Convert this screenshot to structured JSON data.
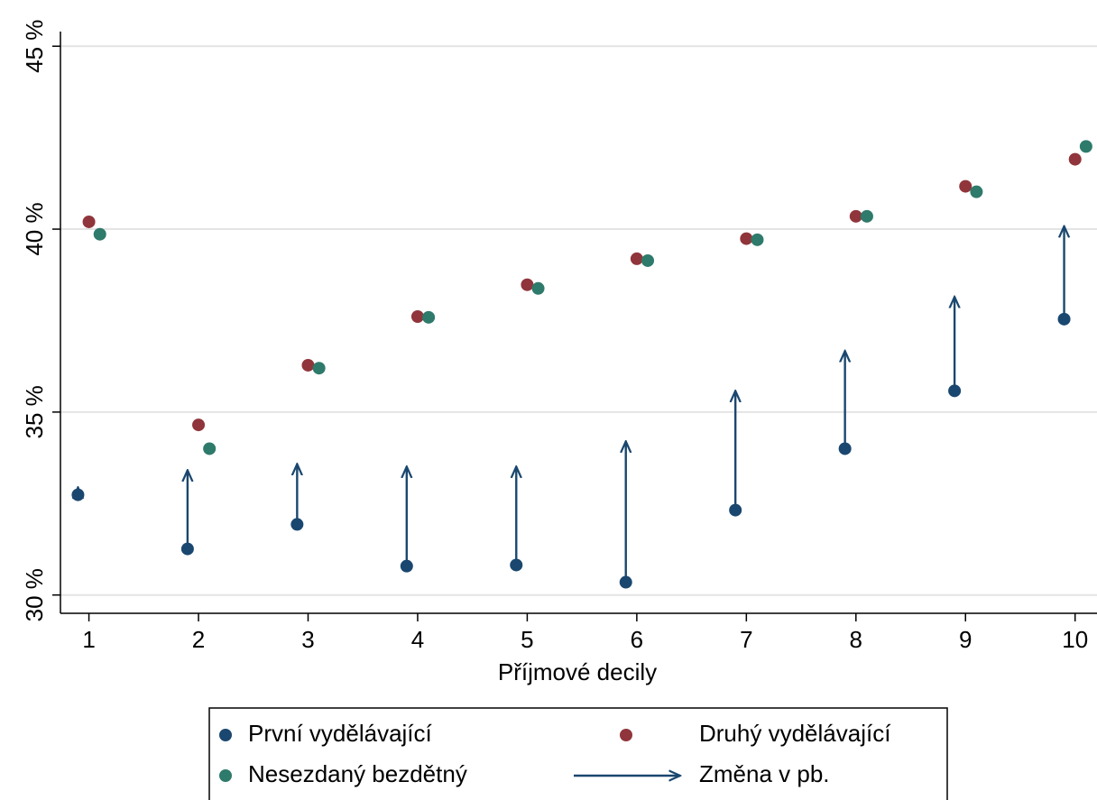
{
  "chart_data": {
    "type": "scatter",
    "x_label": "Příjmové decily",
    "xlim": [
      0.74,
      10.2
    ],
    "xticks": [
      1,
      2,
      3,
      4,
      5,
      6,
      7,
      8,
      9,
      10
    ],
    "ylim": [
      29.5,
      45.4
    ],
    "yticks": [
      {
        "value": 30,
        "label": "30 %"
      },
      {
        "value": 35,
        "label": "35 %"
      },
      {
        "value": 40,
        "label": "40 %"
      },
      {
        "value": 45,
        "label": "45 %"
      }
    ],
    "grid": true,
    "legend": "bottom",
    "series": [
      {
        "name": "První vydělávající",
        "color": "#1a476f",
        "type": "point",
        "x": [
          0.9,
          1.9,
          2.9,
          3.9,
          4.9,
          5.9,
          6.9,
          7.9,
          8.9,
          9.9
        ],
        "values": [
          32.74,
          31.26,
          31.93,
          30.79,
          30.82,
          30.35,
          32.32,
          34.0,
          35.58,
          37.54
        ]
      },
      {
        "name": "Druhý vydělávající",
        "color": "#90353b",
        "type": "point",
        "x": [
          1,
          2,
          3,
          4,
          5,
          6,
          7,
          8,
          9,
          10
        ],
        "values": [
          40.2,
          34.65,
          36.28,
          37.61,
          38.48,
          39.19,
          39.74,
          40.35,
          41.17,
          41.91
        ]
      },
      {
        "name": "Nesezdaný bezdětný",
        "color": "#2e7a6b",
        "type": "point",
        "x": [
          1.1,
          2.1,
          3.1,
          4.1,
          5.1,
          6.1,
          7.1,
          8.1,
          9.1,
          10.1
        ],
        "values": [
          39.86,
          34.0,
          36.2,
          37.59,
          38.38,
          39.14,
          39.71,
          40.35,
          41.02,
          42.26
        ]
      },
      {
        "name": "Změna v pb.",
        "color": "#1a476f",
        "type": "arrow",
        "x": [
          0.9,
          1.9,
          2.9,
          3.9,
          4.9,
          5.9,
          6.9,
          7.9,
          8.9,
          9.9
        ],
        "values": [
          32.94,
          33.41,
          33.58,
          33.51,
          33.51,
          34.2,
          35.58,
          36.67,
          38.15,
          40.08
        ]
      }
    ]
  }
}
